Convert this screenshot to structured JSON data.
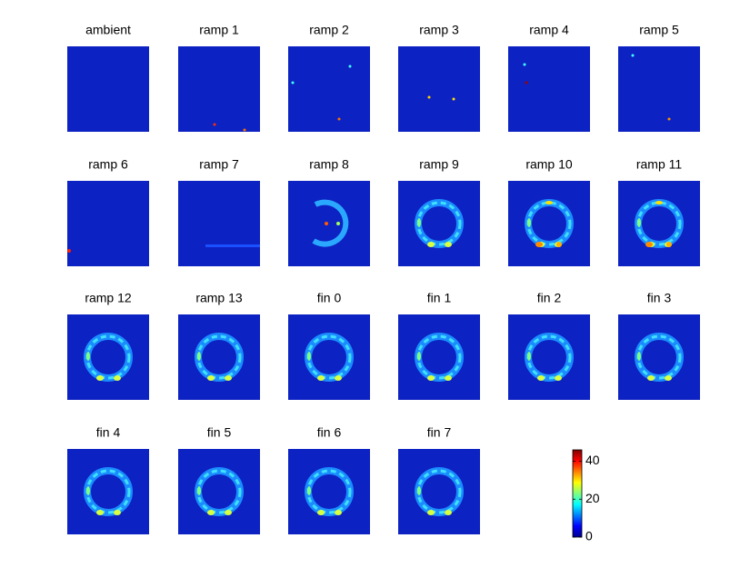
{
  "chart_data": {
    "type": "image-grid",
    "panels": [
      "ambient",
      "ramp 1",
      "ramp 2",
      "ramp 3",
      "ramp 4",
      "ramp 5",
      "ramp 6",
      "ramp 7",
      "ramp 8",
      "ramp 9",
      "ramp 10",
      "ramp 11",
      "ramp 12",
      "ramp 13",
      "fin 0",
      "fin 1",
      "fin 2",
      "fin 3",
      "fin 4",
      "fin 5",
      "fin 6",
      "fin 7"
    ],
    "colorbar": {
      "clim": [
        0,
        46
      ],
      "ticks": [
        0,
        20,
        40
      ],
      "colormap": "jet"
    }
  }
}
